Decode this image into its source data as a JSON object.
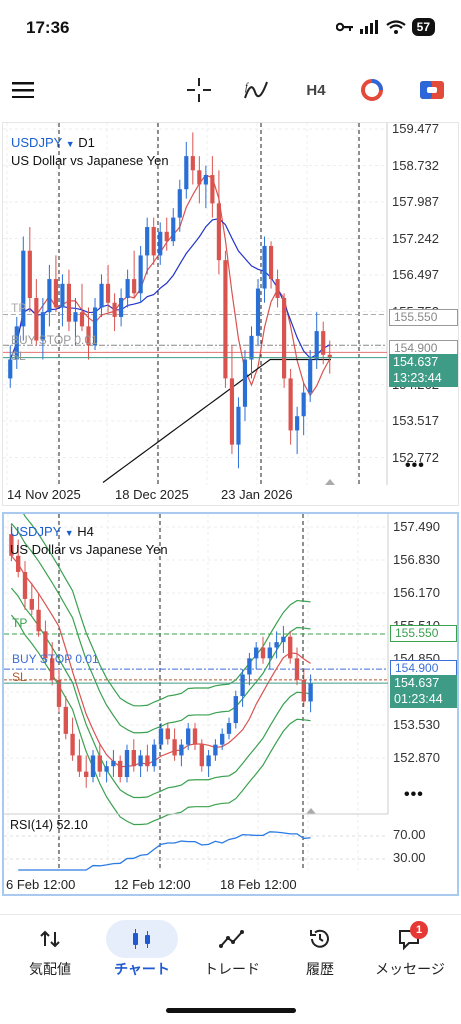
{
  "status": {
    "time": "17:36",
    "battery": "57"
  },
  "toolbar": {
    "timeframe": "H4",
    "icons": [
      "menu-icon",
      "crosshair-icon",
      "indicator-icon",
      "timeframe-button",
      "color-theme-icon",
      "trade-icon"
    ]
  },
  "chart_top": {
    "symbol": "USDJPY",
    "timeframe": "D1",
    "description": "US Dollar vs Japanese Yen",
    "y_ticks": [
      "159.477",
      "158.732",
      "157.987",
      "157.242",
      "156.497",
      "155.752",
      "155.007",
      "154.262",
      "153.517",
      "152.772"
    ],
    "x_ticks": [
      "14 Nov 2025",
      "18 Dec 2025",
      "23 Jan 2026"
    ],
    "lines": {
      "tp": "TP",
      "buy_stop": "BUY STOP 0.01",
      "sl": "SL"
    },
    "price_labels": {
      "tp": "155.550",
      "buy_stop": "154.900",
      "current": "154.637",
      "countdown": "13:23:44"
    },
    "more": "•••"
  },
  "chart_bottom": {
    "symbol": "USDJPY",
    "timeframe": "H4",
    "description": "US Dollar vs Japanese Yen",
    "y_ticks": [
      "157.490",
      "156.830",
      "156.170",
      "155.510",
      "154.850",
      "154.190",
      "153.530",
      "152.870"
    ],
    "x_ticks": [
      "6 Feb 12:00",
      "12 Feb 12:00",
      "18 Feb 12:00"
    ],
    "lines": {
      "tp": "TP",
      "buy_stop": "BUY STOP 0.01",
      "sl": "SL"
    },
    "price_labels": {
      "tp": "155.550",
      "buy_stop": "154.900",
      "current": "154.637",
      "countdown": "01:23:44"
    },
    "more": "•••",
    "rsi": {
      "label": "RSI(14) 52.10",
      "levels": [
        "70.00",
        "30.00"
      ]
    }
  },
  "tabs": [
    {
      "label": "気配値",
      "icon": "quotes-icon"
    },
    {
      "label": "チャート",
      "icon": "chart-icon",
      "active": true
    },
    {
      "label": "トレード",
      "icon": "trade-icon"
    },
    {
      "label": "履歴",
      "icon": "history-icon"
    },
    {
      "label": "メッセージ",
      "icon": "messages-icon",
      "badge": "1"
    }
  ],
  "chart_data": [
    {
      "type": "candlestick",
      "title": "USDJPY D1",
      "ylim": [
        152.2,
        159.6
      ],
      "x_labels": [
        "14 Nov 2025",
        "18 Dec 2025",
        "23 Jan 2026"
      ],
      "candles": [
        [
          154.2,
          154.9,
          154.0,
          154.6
        ],
        [
          154.6,
          155.5,
          154.4,
          155.3
        ],
        [
          155.3,
          157.2,
          155.0,
          156.9
        ],
        [
          156.9,
          157.4,
          155.6,
          155.9
        ],
        [
          155.9,
          156.3,
          154.9,
          155.0
        ],
        [
          155.0,
          155.9,
          154.6,
          155.6
        ],
        [
          155.6,
          156.6,
          155.3,
          156.3
        ],
        [
          156.3,
          156.8,
          155.6,
          155.7
        ],
        [
          155.7,
          156.4,
          155.3,
          156.2
        ],
        [
          156.2,
          156.5,
          155.2,
          155.4
        ],
        [
          155.4,
          155.9,
          154.9,
          155.6
        ],
        [
          155.6,
          156.2,
          155.2,
          155.3
        ],
        [
          155.3,
          155.7,
          154.6,
          154.9
        ],
        [
          154.9,
          155.9,
          154.8,
          155.7
        ],
        [
          155.7,
          156.4,
          155.5,
          156.2
        ],
        [
          156.2,
          156.6,
          155.6,
          155.8
        ],
        [
          155.8,
          156.0,
          155.2,
          155.5
        ],
        [
          155.5,
          156.1,
          155.3,
          155.9
        ],
        [
          155.9,
          156.5,
          155.7,
          156.3
        ],
        [
          156.3,
          156.9,
          155.9,
          156.0
        ],
        [
          156.0,
          157.0,
          155.8,
          156.8
        ],
        [
          156.8,
          157.6,
          156.4,
          157.4
        ],
        [
          157.4,
          157.6,
          156.6,
          156.8
        ],
        [
          156.8,
          157.5,
          156.6,
          157.3
        ],
        [
          157.3,
          157.6,
          156.9,
          157.1
        ],
        [
          157.1,
          157.8,
          157.0,
          157.6
        ],
        [
          157.6,
          158.4,
          157.3,
          158.2
        ],
        [
          158.2,
          159.2,
          158.0,
          158.9
        ],
        [
          158.9,
          159.4,
          158.3,
          158.6
        ],
        [
          158.6,
          158.9,
          157.9,
          158.3
        ],
        [
          158.3,
          158.7,
          157.8,
          158.5
        ],
        [
          158.5,
          158.9,
          157.6,
          157.9
        ],
        [
          157.9,
          158.6,
          156.4,
          156.7
        ],
        [
          156.7,
          156.9,
          154.0,
          154.2
        ],
        [
          154.2,
          154.9,
          152.6,
          152.8
        ],
        [
          152.8,
          153.8,
          152.3,
          153.6
        ],
        [
          153.6,
          154.8,
          153.3,
          154.6
        ],
        [
          154.6,
          155.3,
          154.2,
          155.1
        ],
        [
          155.1,
          156.3,
          154.9,
          156.1
        ],
        [
          156.1,
          157.2,
          155.8,
          157.0
        ],
        [
          157.0,
          157.1,
          156.1,
          156.3
        ],
        [
          156.3,
          156.5,
          155.7,
          155.9
        ],
        [
          155.9,
          156.0,
          154.0,
          154.2
        ],
        [
          154.2,
          154.4,
          152.8,
          153.1
        ],
        [
          153.1,
          153.6,
          152.6,
          153.4
        ],
        [
          153.4,
          154.1,
          153.0,
          153.9
        ],
        [
          153.9,
          154.8,
          153.7,
          154.6
        ],
        [
          154.6,
          155.6,
          154.4,
          155.2
        ],
        [
          155.2,
          155.4,
          154.5,
          154.7
        ],
        [
          154.7,
          155.0,
          154.3,
          154.64
        ]
      ]
    },
    {
      "type": "candlestick",
      "title": "USDJPY H4",
      "ylim": [
        152.4,
        157.7
      ],
      "x_labels": [
        "6 Feb 12:00",
        "12 Feb 12:00",
        "18 Feb 12:00"
      ],
      "candles": [
        [
          157.4,
          157.6,
          156.9,
          157.0
        ],
        [
          157.0,
          157.3,
          156.6,
          156.7
        ],
        [
          156.7,
          156.9,
          156.0,
          156.2
        ],
        [
          156.2,
          156.5,
          155.9,
          156.0
        ],
        [
          156.0,
          156.3,
          155.5,
          155.6
        ],
        [
          155.6,
          155.8,
          155.0,
          155.1
        ],
        [
          155.1,
          155.4,
          154.6,
          154.7
        ],
        [
          154.7,
          154.9,
          154.1,
          154.2
        ],
        [
          154.2,
          154.4,
          153.6,
          153.7
        ],
        [
          153.7,
          154.0,
          153.2,
          153.3
        ],
        [
          153.3,
          153.6,
          152.9,
          153.0
        ],
        [
          153.0,
          153.3,
          152.7,
          152.9
        ],
        [
          152.9,
          153.4,
          152.8,
          153.3
        ],
        [
          153.3,
          153.5,
          152.9,
          153.0
        ],
        [
          153.0,
          153.2,
          152.8,
          153.1
        ],
        [
          153.1,
          153.4,
          152.9,
          153.2
        ],
        [
          153.2,
          153.3,
          152.8,
          152.9
        ],
        [
          152.9,
          153.5,
          152.8,
          153.4
        ],
        [
          153.4,
          153.6,
          153.0,
          153.1
        ],
        [
          153.1,
          153.4,
          152.9,
          153.3
        ],
        [
          153.3,
          153.5,
          153.0,
          153.1
        ],
        [
          153.1,
          153.6,
          153.0,
          153.5
        ],
        [
          153.5,
          153.9,
          153.4,
          153.8
        ],
        [
          153.8,
          153.9,
          153.5,
          153.6
        ],
        [
          153.6,
          153.8,
          153.2,
          153.3
        ],
        [
          153.3,
          153.6,
          153.1,
          153.5
        ],
        [
          153.5,
          153.9,
          153.4,
          153.8
        ],
        [
          153.8,
          153.9,
          153.4,
          153.5
        ],
        [
          153.5,
          153.6,
          153.0,
          153.1
        ],
        [
          153.1,
          153.4,
          152.9,
          153.3
        ],
        [
          153.3,
          153.6,
          153.2,
          153.5
        ],
        [
          153.5,
          153.8,
          153.4,
          153.7
        ],
        [
          153.7,
          154.0,
          153.6,
          153.9
        ],
        [
          153.9,
          154.5,
          153.8,
          154.4
        ],
        [
          154.4,
          154.9,
          154.2,
          154.8
        ],
        [
          154.8,
          155.2,
          154.6,
          155.1
        ],
        [
          155.1,
          155.4,
          154.9,
          155.3
        ],
        [
          155.3,
          155.5,
          155.0,
          155.1
        ],
        [
          155.1,
          155.4,
          154.9,
          155.3
        ],
        [
          155.3,
          155.6,
          155.1,
          155.4
        ],
        [
          155.4,
          155.7,
          155.2,
          155.5
        ],
        [
          155.5,
          155.6,
          155.0,
          155.1
        ],
        [
          155.1,
          155.3,
          154.6,
          154.7
        ],
        [
          154.7,
          154.9,
          154.2,
          154.3
        ],
        [
          154.3,
          154.8,
          154.1,
          154.64
        ]
      ]
    }
  ]
}
